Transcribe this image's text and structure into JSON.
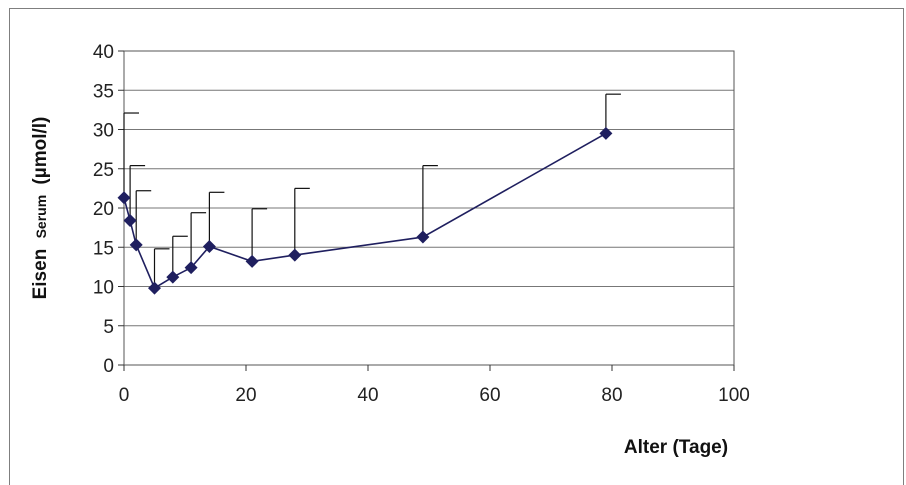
{
  "chart_data": {
    "type": "scatter",
    "xlabel": "Alter (Tage)",
    "ylabel": {
      "main": "Eisen",
      "sub": "Serum",
      "unit": "(µmol/l)"
    },
    "xlim": [
      0,
      100
    ],
    "ylim": [
      0,
      40
    ],
    "xticks": [
      "0",
      "20",
      "40",
      "60",
      "80",
      "100"
    ],
    "yticks": [
      "0",
      "5",
      "10",
      "15",
      "20",
      "25",
      "30",
      "35",
      "40"
    ],
    "grid": "horizontal",
    "legend": "none",
    "series": [
      {
        "x": [
          0,
          1,
          2,
          5,
          8,
          11,
          14,
          21,
          28,
          49,
          79
        ],
        "y": [
          21.3,
          18.4,
          15.3,
          9.8,
          11.2,
          12.4,
          15.1,
          13.2,
          14.0,
          16.3,
          29.5
        ],
        "error_upper": [
          32.1,
          25.4,
          22.2,
          14.8,
          16.4,
          19.4,
          22.0,
          19.9,
          22.5,
          25.4,
          34.5
        ]
      }
    ],
    "colors": {
      "line": "#1f1f5f",
      "marker": "#1f1f5f",
      "error_bar": "#111111",
      "grid": "#777777"
    }
  }
}
